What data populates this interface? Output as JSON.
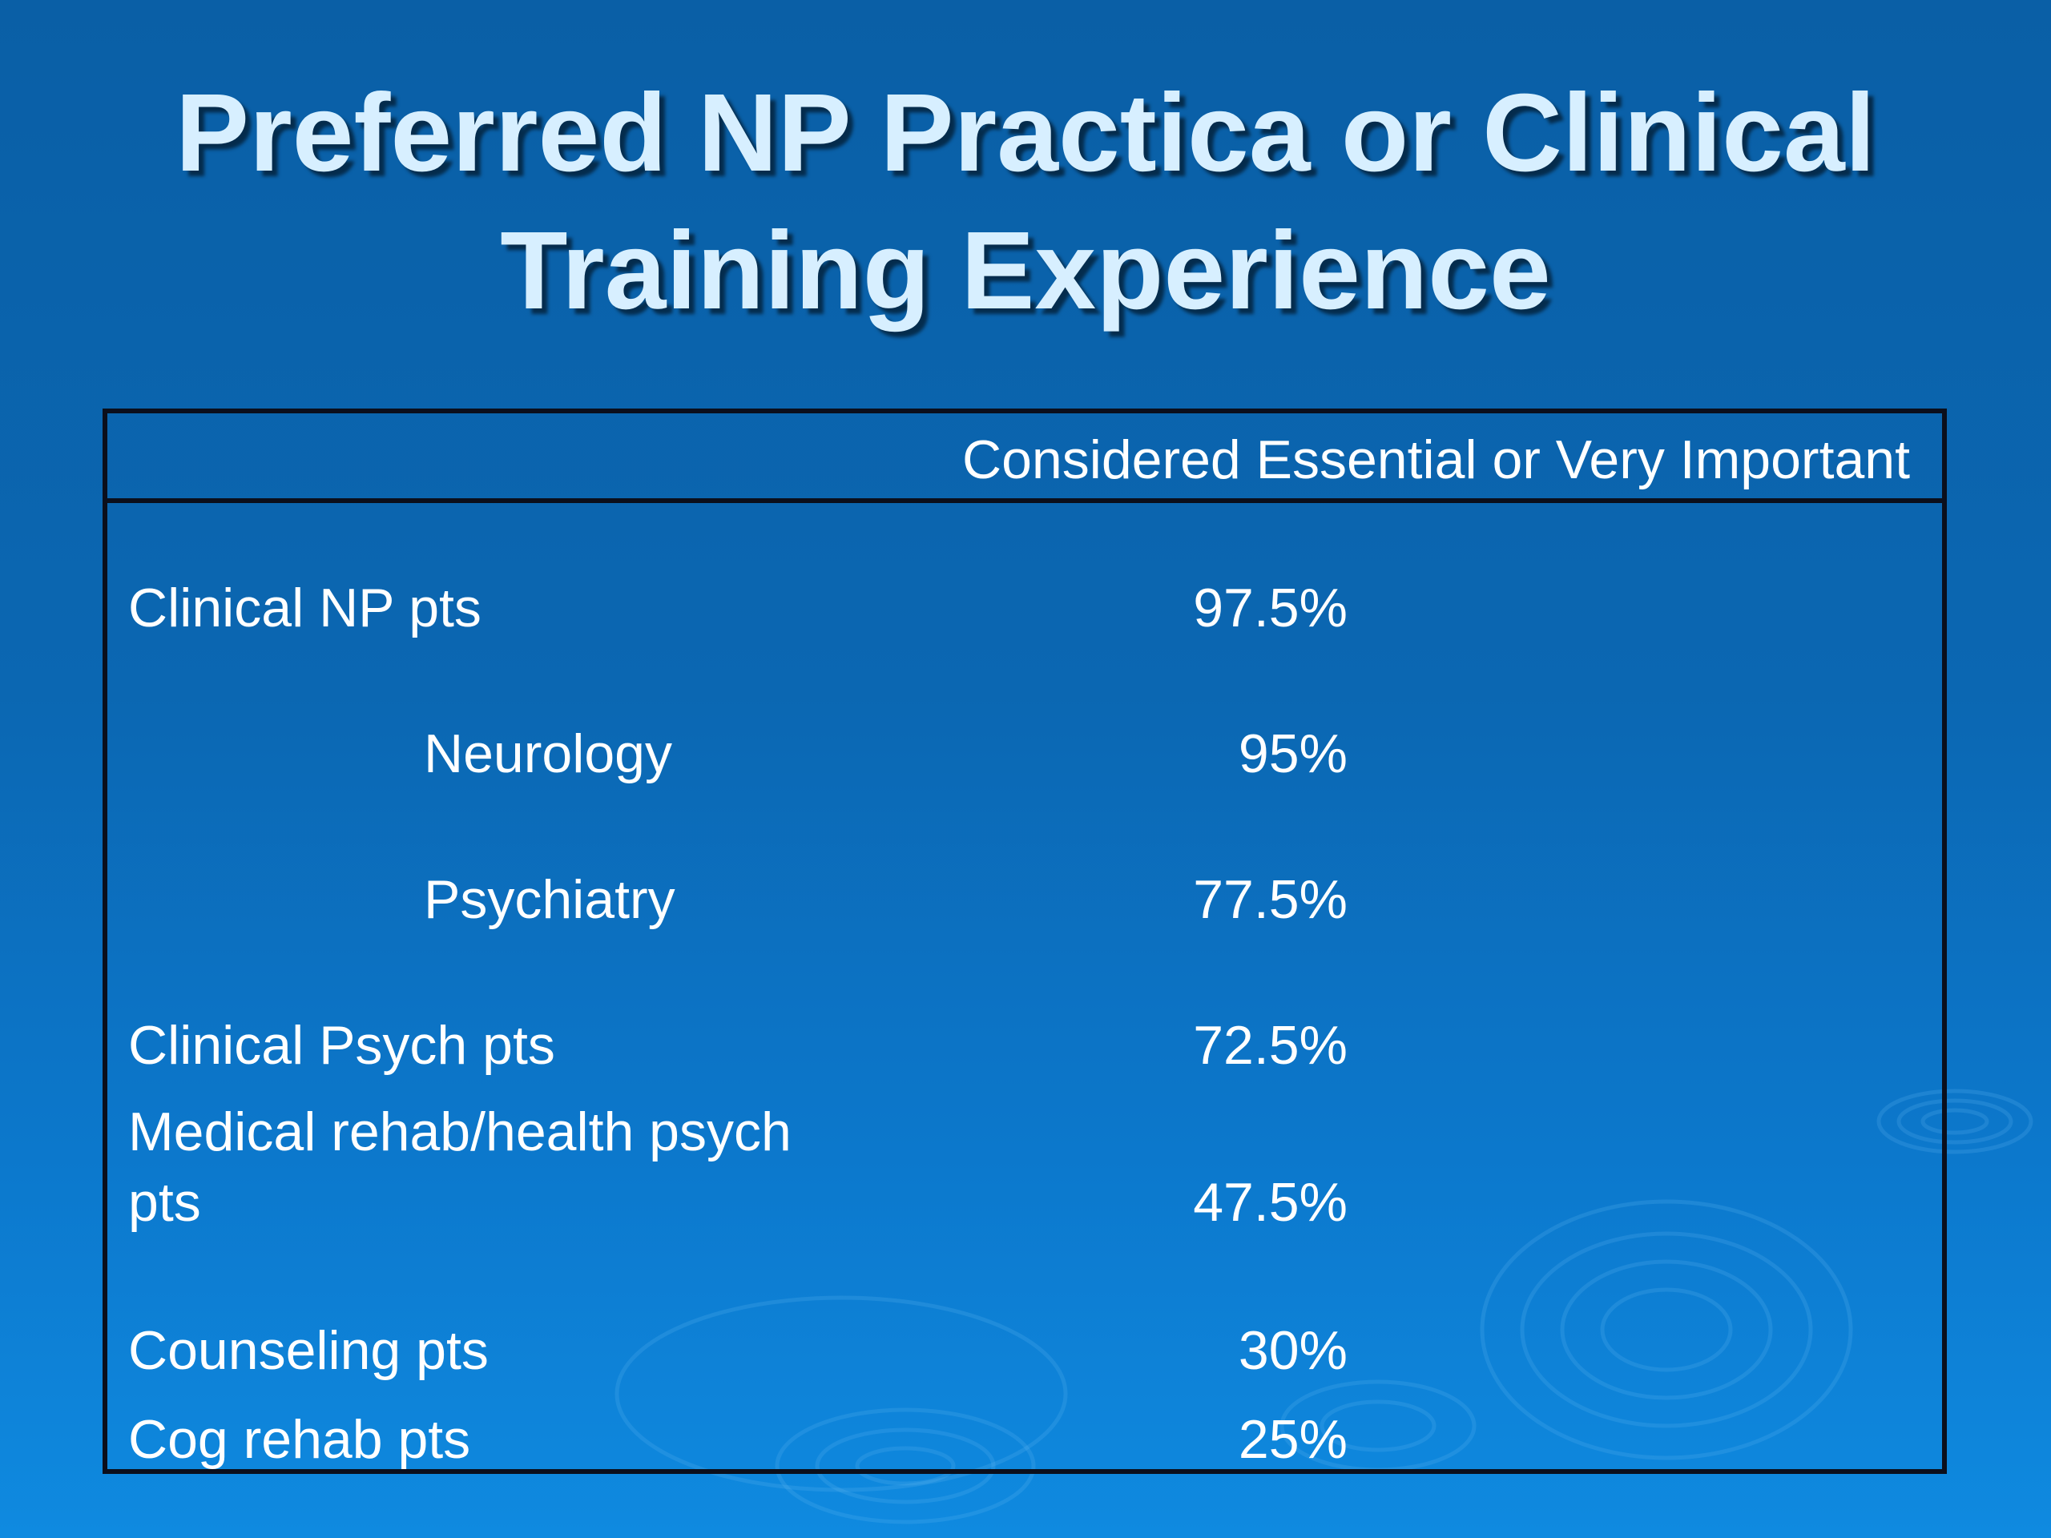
{
  "slide": {
    "title_line1": "Preferred NP Practica or Clinical",
    "title_line2": "Training Experience"
  },
  "table": {
    "column_header": "Considered Essential or Very Important",
    "rows": [
      {
        "label": "Clinical NP pts",
        "value": "97.5%",
        "indent": false
      },
      {
        "label": "Neurology",
        "value": "95%",
        "indent": true
      },
      {
        "label": "Psychiatry",
        "value": "77.5%",
        "indent": true
      },
      {
        "label": "Clinical Psych pts",
        "value": "72.5%",
        "indent": false
      },
      {
        "label_line1": "Medical rehab/health psych",
        "label_line2": "pts",
        "value": "47.5%",
        "indent": false
      },
      {
        "label": "Counseling pts",
        "value": "30%",
        "indent": false
      },
      {
        "label": "Cog rehab pts",
        "value": "25%",
        "indent": false
      }
    ]
  },
  "colors": {
    "background_top": "#0a5fa6",
    "background_bottom": "#0f8ae0",
    "title_text": "#d7efff",
    "body_text": "#ffffff",
    "table_border": "#0b0f1c"
  }
}
